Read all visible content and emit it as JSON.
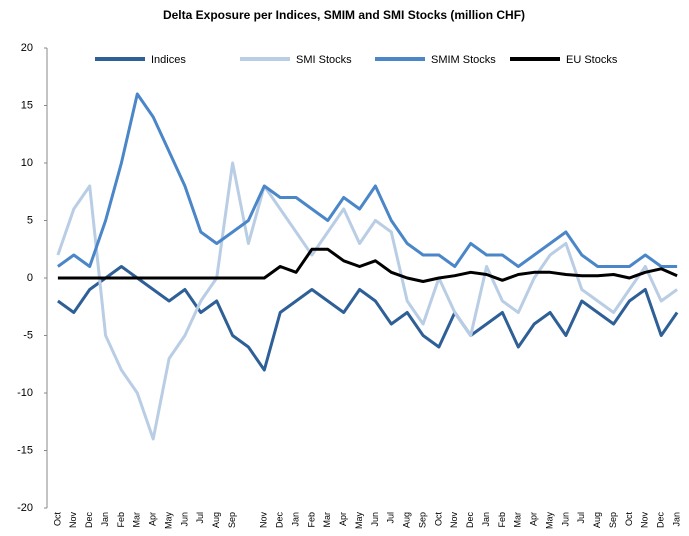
{
  "chart_data": {
    "type": "line",
    "title": "Delta Exposure per Indices, SMIM and SMI Stocks (million CHF)",
    "categories": [
      "Oct",
      "Nov",
      "Dec",
      "Jan",
      "Feb",
      "Mar",
      "Apr",
      "May",
      "Jun",
      "Jul",
      "Aug",
      "Sep",
      null,
      "Nov",
      "Dec",
      "Jan",
      "Feb",
      "Mar",
      "Apr",
      "May",
      "Jun",
      "Jul",
      "Aug",
      "Sep",
      "Oct",
      "Nov",
      "Dec",
      "Jan",
      "Feb",
      "Mar",
      "Apr",
      "May",
      "Jun",
      "Jul",
      "Aug",
      "Sep",
      "Oct",
      "Nov",
      "Dec",
      "Jan"
    ],
    "series": [
      {
        "name": "Indices",
        "color": "#2e5f96",
        "values": [
          -2,
          -3,
          -1,
          0,
          1,
          0,
          -1,
          -2,
          -1,
          -3,
          -2,
          -5,
          -6,
          -8,
          -3,
          -2,
          -1,
          -2,
          -3,
          -1,
          -2,
          -4,
          -3,
          -5,
          -6,
          -3,
          -5,
          -4,
          -3,
          -6,
          -4,
          -3,
          -5,
          -2,
          -3,
          -4,
          -2,
          -1,
          -5,
          -3
        ]
      },
      {
        "name": "SMI Stocks",
        "color": "#b9cde5",
        "values": [
          2,
          6,
          8,
          -5,
          -8,
          -10,
          -14,
          -7,
          -5,
          -2,
          0,
          10,
          3,
          8,
          6,
          4,
          2,
          4,
          6,
          3,
          5,
          4,
          -2,
          -4,
          0,
          -3,
          -5,
          1,
          -2,
          -3,
          0,
          2,
          3,
          -1,
          -2,
          -3,
          -1,
          1,
          -2,
          -1
        ]
      },
      {
        "name": "SMIM Stocks",
        "color": "#4a86c8",
        "values": [
          1,
          2,
          1,
          5,
          10,
          16,
          14,
          11,
          8,
          4,
          3,
          4,
          5,
          8,
          7,
          7,
          6,
          5,
          7,
          6,
          8,
          5,
          3,
          2,
          2,
          1,
          3,
          2,
          2,
          1,
          2,
          3,
          4,
          2,
          1,
          1,
          1,
          2,
          1,
          1
        ]
      },
      {
        "name": "EU Stocks",
        "color": "#000000",
        "values": [
          0,
          0,
          0,
          0,
          0,
          0,
          0,
          0,
          0,
          0,
          0,
          0,
          0,
          0,
          1,
          0.5,
          2.5,
          2.5,
          1.5,
          1,
          1.5,
          0.5,
          0,
          -0.3,
          0,
          0.2,
          0.5,
          0.3,
          -0.2,
          0.3,
          0.5,
          0.5,
          0.3,
          0.2,
          0.2,
          0.3,
          0,
          0.5,
          0.8,
          0.2
        ]
      }
    ],
    "ylim": [
      -20,
      20
    ],
    "yticks": [
      -20,
      -15,
      -10,
      -5,
      0,
      5,
      10,
      15,
      20
    ],
    "grid": false,
    "legend": "top"
  }
}
